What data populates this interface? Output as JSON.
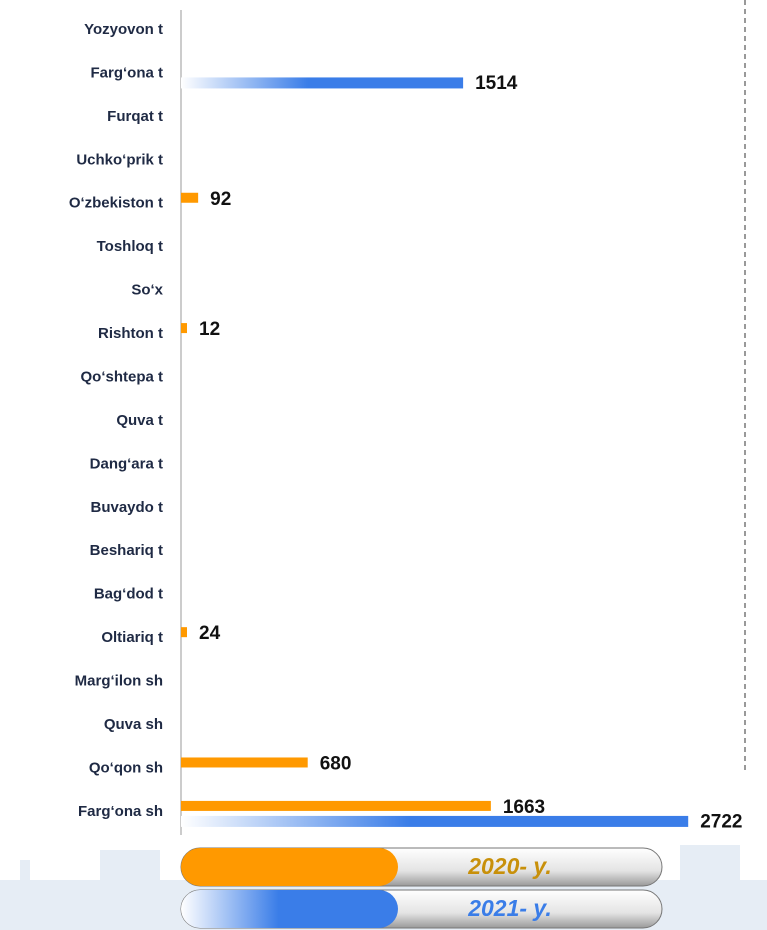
{
  "chart_data": {
    "type": "bar",
    "orientation": "horizontal",
    "categories": [
      "Yozyovon t",
      "Farg‘ona t",
      "Furqat t",
      "Uchko‘prik t",
      "O‘zbekiston t",
      "Toshloq t",
      "So‘x",
      "Rishton t",
      "Qo‘shtepa t",
      "Quva t",
      "Dang‘ara t",
      "Buvaydo t",
      "Beshariq t",
      "Bag‘dod t",
      "Oltiariq t",
      "Marg‘ilon sh",
      "Quva sh",
      "Qo‘qon sh",
      "Farg‘ona sh"
    ],
    "series": [
      {
        "name": "2020- y.",
        "color": "#ff9900",
        "values": [
          null,
          null,
          null,
          null,
          92,
          null,
          null,
          12,
          null,
          null,
          null,
          null,
          null,
          null,
          24,
          null,
          null,
          680,
          1663
        ]
      },
      {
        "name": "2021- y.",
        "color": "#3a7de8",
        "values": [
          null,
          1514,
          null,
          null,
          null,
          null,
          null,
          null,
          null,
          null,
          null,
          null,
          null,
          null,
          null,
          null,
          null,
          null,
          2722
        ]
      }
    ],
    "xlim": [
      0,
      3000
    ]
  }
}
